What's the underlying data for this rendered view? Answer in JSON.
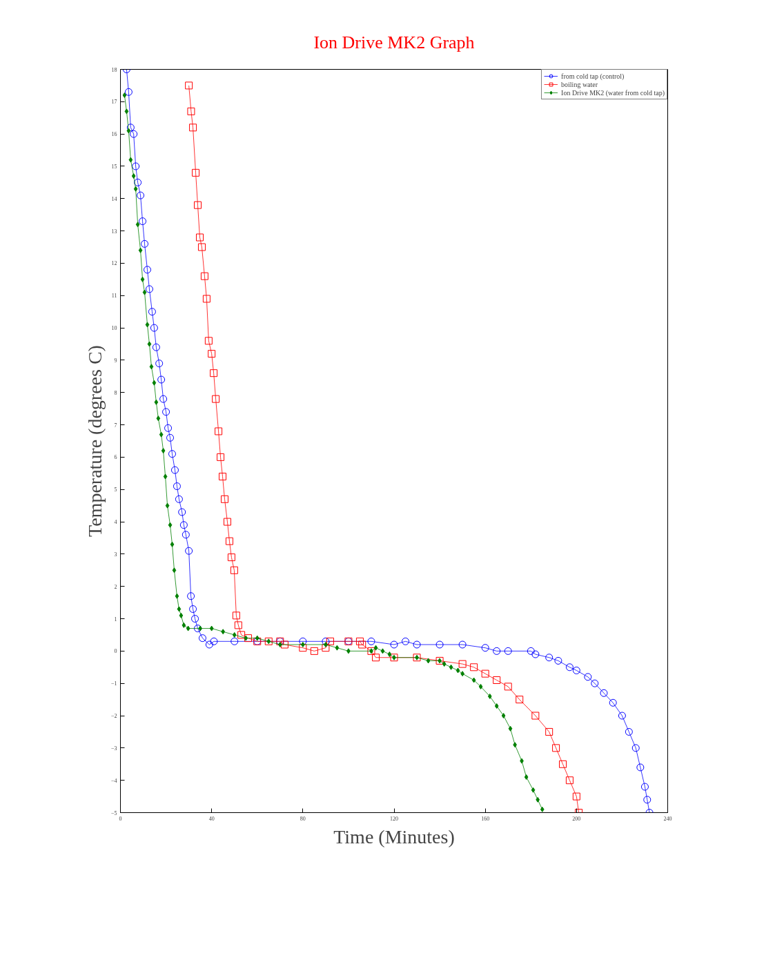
{
  "chart_data": {
    "type": "line",
    "title": "Ion Drive MK2 Graph",
    "xlabel": "Time (Minutes)",
    "ylabel": "Temperature (degrees C)",
    "xlim": [
      0,
      240
    ],
    "ylim": [
      -5,
      18
    ],
    "xticks": [
      0,
      40,
      80,
      120,
      160,
      200,
      240
    ],
    "yticks": [
      -5,
      -4,
      -3,
      -2,
      -1,
      0,
      1,
      2,
      3,
      4,
      5,
      6,
      7,
      8,
      9,
      10,
      11,
      12,
      13,
      14,
      15,
      16,
      17,
      18
    ],
    "grid": false,
    "legend": "top right",
    "series": [
      {
        "name": "from cold tap (control)",
        "color": "#0000ff",
        "marker": "circle",
        "x": [
          2.7,
          3.6,
          4.5,
          5.8,
          6.7,
          7.6,
          8.8,
          9.7,
          10.6,
          11.8,
          12.7,
          13.9,
          14.8,
          15.7,
          17,
          17.9,
          18.8,
          20,
          20.9,
          21.8,
          22.7,
          23.9,
          24.8,
          25.7,
          27,
          27.8,
          28.7,
          30,
          30.9,
          31.8,
          32.7,
          33.9,
          36,
          39,
          41,
          50,
          60,
          70,
          80,
          90,
          100,
          110,
          120,
          125,
          130,
          140,
          150,
          160,
          165,
          170,
          180,
          182,
          188,
          192,
          197,
          200,
          205,
          208,
          212,
          216,
          220,
          223,
          226,
          228,
          230,
          231,
          232
        ],
        "values": [
          18,
          17.3,
          16.2,
          16.0,
          15.0,
          14.5,
          14.1,
          13.3,
          12.6,
          11.8,
          11.2,
          10.5,
          10.0,
          9.4,
          8.9,
          8.4,
          7.8,
          7.4,
          6.9,
          6.6,
          6.1,
          5.6,
          5.1,
          4.7,
          4.3,
          3.9,
          3.6,
          3.1,
          1.7,
          1.3,
          1.0,
          0.7,
          0.4,
          0.2,
          0.3,
          0.3,
          0.3,
          0.3,
          0.3,
          0.3,
          0.3,
          0.3,
          0.2,
          0.3,
          0.2,
          0.2,
          0.2,
          0.1,
          0,
          0,
          0,
          -0.1,
          -0.2,
          -0.3,
          -0.5,
          -0.6,
          -0.8,
          -1.0,
          -1.3,
          -1.6,
          -2.0,
          -2.5,
          -3.0,
          -3.6,
          -4.2,
          -4.6,
          -5.0
        ]
      },
      {
        "name": "boiling water",
        "color": "#ff0000",
        "marker": "square",
        "x": [
          30,
          31,
          31.8,
          33,
          33.9,
          34.8,
          35.7,
          36.9,
          37.8,
          38.7,
          40,
          40.9,
          41.8,
          43,
          43.9,
          44.8,
          45.7,
          46.9,
          47.8,
          48.7,
          49.9,
          50.8,
          51.7,
          53,
          56,
          60,
          65,
          70,
          72,
          80,
          85,
          90,
          92,
          100,
          105,
          106,
          110,
          112,
          120,
          130,
          140,
          150,
          155,
          160,
          165,
          170,
          175,
          182,
          188,
          191,
          194,
          197,
          200,
          201
        ],
        "values": [
          17.5,
          16.7,
          16.2,
          14.8,
          13.8,
          12.8,
          12.5,
          11.6,
          10.9,
          9.6,
          9.2,
          8.6,
          7.8,
          6.8,
          6.0,
          5.4,
          4.7,
          4.0,
          3.4,
          2.9,
          2.5,
          1.1,
          0.8,
          0.5,
          0.4,
          0.3,
          0.3,
          0.3,
          0.2,
          0.1,
          0,
          0.1,
          0.3,
          0.3,
          0.3,
          0.2,
          0,
          -0.2,
          -0.2,
          -0.2,
          -0.3,
          -0.4,
          -0.5,
          -0.7,
          -0.9,
          -1.1,
          -1.5,
          -2.0,
          -2.5,
          -3.0,
          -3.5,
          -4.0,
          -4.5,
          -5.0
        ]
      },
      {
        "name": "Ion Drive MK2 (water from cold tap)",
        "color": "#008000",
        "marker": "diamond",
        "x": [
          1.8,
          2.7,
          3.6,
          4.5,
          5.8,
          6.7,
          7.6,
          8.8,
          9.7,
          10.6,
          11.8,
          12.7,
          13.6,
          14.8,
          15.7,
          16.6,
          17.9,
          18.8,
          19.7,
          20.6,
          21.8,
          22.7,
          23.6,
          24.8,
          25.7,
          26.6,
          27.8,
          29.7,
          35,
          40,
          45,
          50,
          55,
          60,
          65,
          70,
          80,
          90,
          95,
          100,
          110,
          112,
          115,
          118,
          120,
          130,
          135,
          140,
          142,
          145,
          148,
          150,
          155,
          158,
          162,
          165,
          168,
          171,
          173,
          176,
          178,
          181,
          183,
          185
        ],
        "values": [
          17.2,
          16.7,
          16.1,
          15.2,
          14.7,
          14.3,
          13.2,
          12.4,
          11.5,
          11.1,
          10.1,
          9.5,
          8.8,
          8.3,
          7.7,
          7.2,
          6.7,
          6.2,
          5.4,
          4.5,
          3.9,
          3.3,
          2.5,
          1.7,
          1.3,
          1.1,
          0.8,
          0.7,
          0.7,
          0.7,
          0.6,
          0.5,
          0.4,
          0.4,
          0.3,
          0.2,
          0.2,
          0.2,
          0.1,
          0,
          0,
          0.1,
          0,
          -0.1,
          -0.2,
          -0.2,
          -0.3,
          -0.3,
          -0.4,
          -0.5,
          -0.6,
          -0.7,
          -0.9,
          -1.1,
          -1.4,
          -1.7,
          -2.0,
          -2.4,
          -2.9,
          -3.4,
          -3.9,
          -4.3,
          -4.6,
          -4.9
        ]
      }
    ]
  }
}
